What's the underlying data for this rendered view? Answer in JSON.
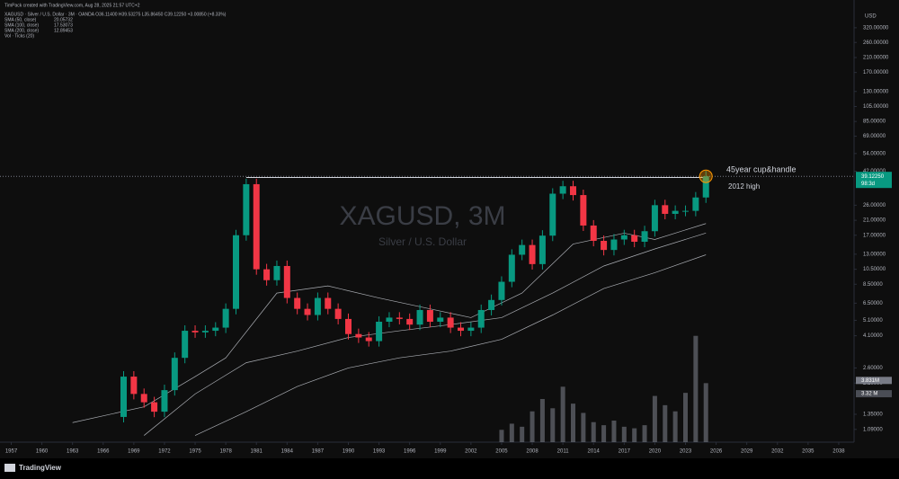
{
  "chart_data": {
    "type": "candlestick",
    "credit": "TimPack created with TradingView.com, Aug 28, 2025 21:57 UTC+2",
    "symbol_line": "XAGUSD · Silver / U.S. Dollar · 3M · OANDA  O36.11400 H39.53275 L35.86450 C39.12250 +3.00850 (+8.33%)",
    "title": "XAGUSD, 3M",
    "subtitle": "Silver / U.S. Dollar",
    "currency": "USD",
    "brand": "TradingView",
    "log_scale": true,
    "xlim": [
      1955.9,
      2039.5
    ],
    "xticks": [
      1957,
      1960,
      1963,
      1966,
      1969,
      1972,
      1975,
      1978,
      1981,
      1984,
      1987,
      1990,
      1993,
      1996,
      1999,
      2002,
      2005,
      2008,
      2011,
      2014,
      2017,
      2020,
      2023,
      2026,
      2029,
      2032,
      2035,
      2038
    ],
    "ylim": [
      0.91,
      377
    ],
    "yticks": [
      {
        "value": 320,
        "label": "320.00000"
      },
      {
        "value": 260,
        "label": "260.00000"
      },
      {
        "value": 210,
        "label": "210.00000"
      },
      {
        "value": 170,
        "label": "170.00000"
      },
      {
        "value": 130,
        "label": "130.00000"
      },
      {
        "value": 105,
        "label": "105.00000"
      },
      {
        "value": 85,
        "label": "85.00000"
      },
      {
        "value": 69,
        "label": "69.00000"
      },
      {
        "value": 54,
        "label": "54.00000"
      },
      {
        "value": 42,
        "label": "42.00000"
      },
      {
        "value": 26,
        "label": "26.00000"
      },
      {
        "value": 21,
        "label": "21.00000"
      },
      {
        "value": 17,
        "label": "17.00000"
      },
      {
        "value": 13,
        "label": "13.00000"
      },
      {
        "value": 10.5,
        "label": "10.50000"
      },
      {
        "value": 8.5,
        "label": "8.50000"
      },
      {
        "value": 6.5,
        "label": "6.50000"
      },
      {
        "value": 5.1,
        "label": "5.10000"
      },
      {
        "value": 4.1,
        "label": "4.10000"
      },
      {
        "value": 2.6,
        "label": "2.60000"
      },
      {
        "value": 2.1,
        "label": "2.10000"
      },
      {
        "value": 1.35,
        "label": "1.35000"
      },
      {
        "value": 1.09,
        "label": "1.09000"
      }
    ],
    "y2lim": [
      0,
      7
    ],
    "up_color": "#089981",
    "down_color": "#f23645",
    "price": {
      "x": [
        1967,
        1968,
        1969,
        1970,
        1971,
        1972,
        1973,
        1974,
        1975,
        1976,
        1977,
        1978,
        1979,
        1980,
        1981,
        1982,
        1983,
        1984,
        1985,
        1986,
        1987,
        1988,
        1989,
        1990,
        1991,
        1992,
        1993,
        1994,
        1995,
        1996,
        1997,
        1998,
        1999,
        2000,
        2001,
        2002,
        2003,
        2004,
        2005,
        2006,
        2007,
        2008,
        2009,
        2010,
        2011,
        2012,
        2013,
        2014,
        2015,
        2016,
        2017,
        2018,
        2019,
        2020,
        2021,
        2022,
        2023,
        2024,
        2025
      ],
      "values": [
        1.3,
        2.3,
        1.8,
        1.6,
        1.4,
        1.9,
        3.0,
        4.4,
        4.3,
        4.4,
        4.6,
        6.0,
        17,
        35,
        10.5,
        9,
        11,
        7,
        6,
        5.5,
        7,
        6,
        5.2,
        4.2,
        4.0,
        3.8,
        5.0,
        5.3,
        5.2,
        4.8,
        5.9,
        5.0,
        5.3,
        4.6,
        4.4,
        4.6,
        5.9,
        6.8,
        8.8,
        12.9,
        14.8,
        11.3,
        16.9,
        30.6,
        34,
        30,
        19.5,
        15.7,
        13.8,
        16,
        17,
        15.5,
        18,
        26,
        23,
        24,
        24,
        29,
        39.1225
      ]
    },
    "last_price": {
      "value": 39.1225,
      "label": "39.12250"
    },
    "countdown": "98:3d",
    "series": [
      {
        "name": "SMA (50, close)",
        "last": 20.05732,
        "color": "#d1d4dc",
        "x": [
          1963,
          1970,
          1975,
          1978,
          1983,
          1988,
          1993,
          1998,
          2002,
          2007,
          2012,
          2017,
          2020,
          2025
        ],
        "values": [
          1.2,
          1.5,
          2.3,
          3,
          7.5,
          8.3,
          7,
          6,
          5.3,
          7.5,
          15,
          17.5,
          16,
          20.05732
        ]
      },
      {
        "name": "SMA (100, close)",
        "last": 17.53073,
        "color": "#d1d4dc",
        "x": [
          1970,
          1975,
          1980,
          1985,
          1990,
          1995,
          2000,
          2005,
          2010,
          2015,
          2020,
          2025
        ],
        "values": [
          1.0,
          1.8,
          2.8,
          3.3,
          4.0,
          4.4,
          4.8,
          5.3,
          7.5,
          11,
          14,
          17.53073
        ]
      },
      {
        "name": "SMA (200, close)",
        "last": 12.89453,
        "color": "#d1d4dc",
        "x": [
          1975,
          1980,
          1985,
          1990,
          1995,
          2000,
          2005,
          2010,
          2015,
          2020,
          2025
        ],
        "values": [
          1.0,
          1.4,
          2.0,
          2.6,
          3.0,
          3.3,
          3.9,
          5.5,
          8,
          10,
          12.89453
        ]
      },
      {
        "name": "Vol · Ticks (20)",
        "axis": "y2",
        "color": "#787b86",
        "x": [
          2005,
          2006,
          2007,
          2008,
          2009,
          2010,
          2011,
          2012,
          2013,
          2014,
          2015,
          2016,
          2017,
          2018,
          2019,
          2020,
          2021,
          2022,
          2023,
          2024,
          2025
        ],
        "values": [
          0.8,
          1.2,
          1.0,
          2.0,
          2.8,
          2.2,
          3.6,
          2.5,
          1.9,
          1.3,
          1.1,
          1.4,
          1.0,
          0.9,
          1.1,
          3.0,
          2.4,
          2.0,
          3.2,
          6.9,
          3.83
        ]
      }
    ],
    "y2_labels": [
      {
        "value": 3.831,
        "label": "3.831M"
      },
      {
        "value": 3.32,
        "label": "3.32 M"
      }
    ],
    "resistance": {
      "value": 38.5,
      "x": [
        1980,
        2025
      ]
    },
    "annotations": [
      "45year cup&handle",
      "2012 high"
    ]
  }
}
